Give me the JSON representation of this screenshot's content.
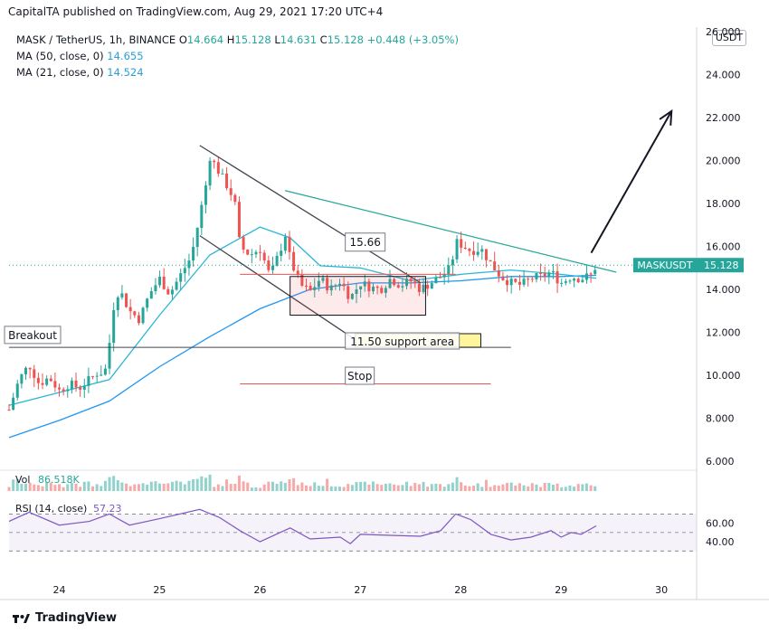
{
  "header": {
    "publisher": "CapitalTA published on TradingView.com, Aug 29, 2021 17:20 UTC+4"
  },
  "legend": {
    "symbol": "MASK / TetherUS, 1h, BINANCE",
    "o_label": "O",
    "o": "14.664",
    "h_label": "H",
    "h": "15.128",
    "l_label": "L",
    "l": "14.631",
    "c_label": "C",
    "c": "15.128",
    "change": "+0.448 (+3.05%)",
    "ma50_label": "MA (50, close, 0)",
    "ma50": "14.655",
    "ma21_label": "MA (21, close, 0)",
    "ma21": "14.524"
  },
  "currency_button": "USDT",
  "price_tag": {
    "label": "MASKUSDT",
    "value": "15.128",
    "color": "#26a69a"
  },
  "volume_label": "Vol",
  "volume_value": "86.518K",
  "rsi_label": "RSI (14, close)",
  "rsi_value": "57.23",
  "brand": "TradingView",
  "annotations": {
    "breakout": "Breakout",
    "support": "11.50 support area",
    "stop": "Stop",
    "range_high": "15.66"
  },
  "colors": {
    "up": "#26a69a",
    "down": "#ef5350",
    "ma": "#2a9fd6",
    "rsi": "#7e57c2",
    "trendline": "#26a69a"
  },
  "chart_data": {
    "type": "candlestick",
    "title": "MASK / TetherUS, 1h, BINANCE",
    "x_ticks": [
      "24",
      "25",
      "26",
      "27",
      "28",
      "29",
      "30"
    ],
    "price_ticks": [
      "6.000",
      "8.000",
      "10.000",
      "12.000",
      "14.000",
      "16.000",
      "18.000",
      "20.000",
      "22.000",
      "24.000",
      "26.000"
    ],
    "ylim": [
      6,
      26
    ],
    "rsi_ticks": [
      "40.00",
      "60.00"
    ],
    "rsi_levels": [
      30,
      50,
      70
    ],
    "close_path": [
      [
        23.5,
        8.4
      ],
      [
        23.6,
        9.8
      ],
      [
        23.7,
        10.5
      ],
      [
        23.8,
        9.6
      ],
      [
        23.9,
        9.9
      ],
      [
        24.0,
        9.3
      ],
      [
        24.1,
        9.6
      ],
      [
        24.2,
        9.4
      ],
      [
        24.3,
        9.8
      ],
      [
        24.4,
        10.2
      ],
      [
        24.45,
        10.0
      ],
      [
        24.5,
        11.5
      ],
      [
        24.55,
        13.5
      ],
      [
        24.6,
        14.0
      ],
      [
        24.7,
        13.0
      ],
      [
        24.8,
        12.6
      ],
      [
        24.9,
        13.8
      ],
      [
        25.0,
        14.5
      ],
      [
        25.1,
        13.8
      ],
      [
        25.2,
        14.6
      ],
      [
        25.3,
        15.4
      ],
      [
        25.35,
        16.2
      ],
      [
        25.4,
        17.5
      ],
      [
        25.45,
        18.5
      ],
      [
        25.5,
        20.2
      ],
      [
        25.6,
        19.4
      ],
      [
        25.7,
        18.6
      ],
      [
        25.75,
        18.0
      ],
      [
        25.8,
        16.0
      ],
      [
        25.9,
        15.6
      ],
      [
        26.0,
        15.9
      ],
      [
        26.1,
        14.6
      ],
      [
        26.2,
        15.8
      ],
      [
        26.25,
        16.6
      ],
      [
        26.3,
        15.4
      ],
      [
        26.4,
        14.2
      ],
      [
        26.5,
        13.9
      ],
      [
        26.6,
        14.5
      ],
      [
        26.7,
        14.0
      ],
      [
        26.8,
        14.4
      ],
      [
        26.9,
        13.6
      ],
      [
        27.0,
        14.3
      ],
      [
        27.1,
        14.1
      ],
      [
        27.2,
        14.0
      ],
      [
        27.3,
        14.5
      ],
      [
        27.4,
        14.2
      ],
      [
        27.5,
        14.4
      ],
      [
        27.6,
        14.0
      ],
      [
        27.7,
        14.3
      ],
      [
        27.8,
        14.6
      ],
      [
        27.9,
        15.0
      ],
      [
        27.95,
        16.2
      ],
      [
        28.0,
        16.1
      ],
      [
        28.1,
        15.8
      ],
      [
        28.2,
        15.9
      ],
      [
        28.3,
        15.2
      ],
      [
        28.4,
        14.6
      ],
      [
        28.5,
        14.3
      ],
      [
        28.6,
        14.2
      ],
      [
        28.7,
        14.5
      ],
      [
        28.8,
        14.6
      ],
      [
        28.9,
        14.8
      ],
      [
        29.0,
        14.3
      ],
      [
        29.1,
        14.6
      ],
      [
        29.2,
        14.5
      ],
      [
        29.3,
        14.66
      ],
      [
        29.35,
        15.128
      ]
    ],
    "ma50_path": [
      [
        23.5,
        7.1
      ],
      [
        24.0,
        7.9
      ],
      [
        24.5,
        8.8
      ],
      [
        25.0,
        10.4
      ],
      [
        25.5,
        11.8
      ],
      [
        26.0,
        13.1
      ],
      [
        26.5,
        14.0
      ],
      [
        27.0,
        14.3
      ],
      [
        27.5,
        14.3
      ],
      [
        28.0,
        14.4
      ],
      [
        28.5,
        14.6
      ],
      [
        29.0,
        14.6
      ],
      [
        29.35,
        14.655
      ]
    ],
    "ma21_path": [
      [
        23.5,
        8.6
      ],
      [
        24.0,
        9.2
      ],
      [
        24.5,
        9.8
      ],
      [
        25.0,
        12.8
      ],
      [
        25.5,
        15.6
      ],
      [
        26.0,
        16.9
      ],
      [
        26.3,
        16.4
      ],
      [
        26.6,
        15.1
      ],
      [
        27.0,
        15.0
      ],
      [
        27.5,
        14.4
      ],
      [
        28.0,
        14.7
      ],
      [
        28.5,
        14.9
      ],
      [
        29.0,
        14.7
      ],
      [
        29.35,
        14.524
      ]
    ],
    "rsi_path": [
      [
        23.5,
        62
      ],
      [
        23.7,
        72
      ],
      [
        24.0,
        58
      ],
      [
        24.3,
        62
      ],
      [
        24.5,
        70
      ],
      [
        24.7,
        58
      ],
      [
        25.0,
        65
      ],
      [
        25.4,
        75
      ],
      [
        25.6,
        66
      ],
      [
        25.8,
        52
      ],
      [
        26.0,
        40
      ],
      [
        26.3,
        55
      ],
      [
        26.5,
        43
      ],
      [
        26.8,
        45
      ],
      [
        26.9,
        38
      ],
      [
        27.0,
        48
      ],
      [
        27.3,
        47
      ],
      [
        27.6,
        46
      ],
      [
        27.8,
        52
      ],
      [
        27.95,
        70
      ],
      [
        28.1,
        64
      ],
      [
        28.3,
        48
      ],
      [
        28.5,
        42
      ],
      [
        28.7,
        45
      ],
      [
        28.9,
        52
      ],
      [
        29.0,
        45
      ],
      [
        29.1,
        50
      ],
      [
        29.2,
        48
      ],
      [
        29.35,
        57.23
      ]
    ],
    "resistance_trendline": [
      [
        26.25,
        18.6
      ],
      [
        29.55,
        14.8
      ]
    ],
    "falling_trendline_upper": [
      [
        25.4,
        20.7
      ],
      [
        27.6,
        14.3
      ]
    ],
    "falling_trendline_lower": [
      [
        25.4,
        16.5
      ],
      [
        27.0,
        11.5
      ]
    ],
    "range_box": {
      "x0": 26.3,
      "x1": 27.65,
      "y0": 12.8,
      "y1": 14.6
    },
    "range_high_line": 14.7,
    "support_line": 11.3,
    "stop_line": 9.6,
    "arrow": [
      [
        29.3,
        15.7
      ],
      [
        30.1,
        22.3
      ]
    ]
  }
}
